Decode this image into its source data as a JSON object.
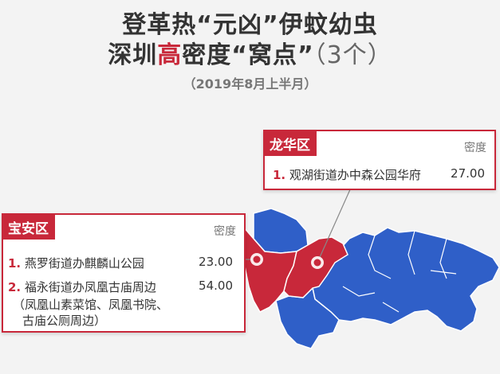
{
  "title": {
    "line1": "登革热“元凶”伊蚊幼虫",
    "line2_a": "深圳",
    "line2_hi": "高",
    "line2_b": "密度“窝点”",
    "line2_count": "（3个）",
    "date": "（2019年8月上半月）"
  },
  "colors": {
    "accent": "#c8283a",
    "map_blue": "#2f5fc8",
    "map_red": "#c8283a"
  },
  "longhua": {
    "district": "龙华区",
    "density_header": "密度",
    "items": [
      {
        "num": "1.",
        "name": "观湖街道办中森公园华府",
        "value": "27.00"
      }
    ]
  },
  "baoan": {
    "district": "宝安区",
    "density_header": "密度",
    "items": [
      {
        "num": "1.",
        "name": "燕罗街道办麒麟山公园",
        "value": "23.00"
      },
      {
        "num": "2.",
        "name": "福永街道办凤凰古庙周边",
        "value": "54.00"
      }
    ],
    "note_line1": "（凤凰山素菜馆、凤凰书院、",
    "note_line2": "古庙公厕周边）"
  }
}
